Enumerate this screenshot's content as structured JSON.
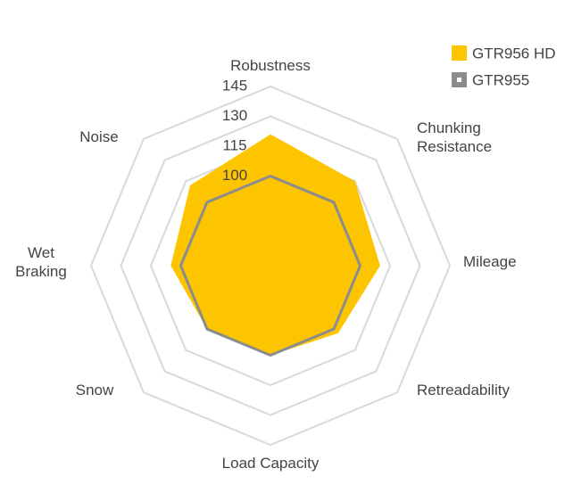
{
  "chart_data": {
    "type": "radar",
    "categories": [
      "Robustness",
      "Chunking Resistance",
      "Mileage",
      "Retreadability",
      "Load Capacity",
      "Snow",
      "Wet Braking",
      "Noise"
    ],
    "series": [
      {
        "name": "GTR956 HD",
        "color": "#fdc500",
        "values": [
          121,
          115,
          110,
          103,
          100,
          100,
          105,
          112
        ]
      },
      {
        "name": "GTR955",
        "color": "#8c8c8c",
        "values": [
          100,
          100,
          100,
          100,
          100,
          100,
          100,
          100
        ]
      }
    ],
    "rlim": [
      55,
      145
    ],
    "rticks": [
      100,
      115,
      130,
      145
    ],
    "grid": true,
    "legend": "top-right"
  }
}
